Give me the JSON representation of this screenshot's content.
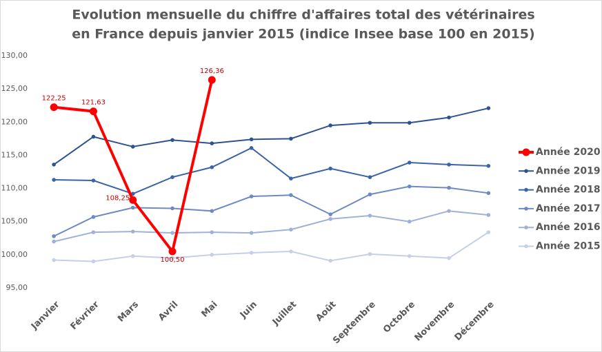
{
  "chart_data": {
    "type": "line",
    "title": [
      "Evolution mensuelle du chiffre d'affaires total des vétérinaires",
      "en France depuis janvier 2015 (indice Insee base 100 en 2015)"
    ],
    "categories": [
      "Janvier",
      "Février",
      "Mars",
      "Avril",
      "Mai",
      "Juin",
      "Juillet",
      "Août",
      "Septembre",
      "Octobre",
      "Novembre",
      "Décembre"
    ],
    "series": [
      {
        "name": "Année 2020",
        "color": "#ff0000",
        "values": [
          122.25,
          121.63,
          108.25,
          100.5,
          126.36,
          null,
          null,
          null,
          null,
          null,
          null,
          null
        ],
        "value_labels": [
          "122,25",
          "121,63",
          "108,25",
          "100,50",
          "126,36",
          null,
          null,
          null,
          null,
          null,
          null,
          null
        ]
      },
      {
        "name": "Année 2019",
        "color": "#2e5290",
        "values": [
          113.6,
          117.8,
          116.3,
          117.3,
          116.8,
          117.4,
          117.5,
          119.5,
          119.9,
          119.9,
          120.7,
          122.1
        ]
      },
      {
        "name": "Année 2018",
        "color": "#3b63a9",
        "values": [
          111.3,
          111.2,
          109.2,
          111.7,
          113.2,
          116.1,
          111.5,
          113.0,
          111.7,
          113.9,
          113.6,
          113.4
        ]
      },
      {
        "name": "Année 2017",
        "color": "#6f89c4",
        "values": [
          102.8,
          105.7,
          107.1,
          107.0,
          106.6,
          108.8,
          109.0,
          106.1,
          109.1,
          110.3,
          110.1,
          109.3
        ]
      },
      {
        "name": "Année 2016",
        "color": "#9fb1d7",
        "values": [
          102.0,
          103.4,
          103.5,
          103.3,
          103.4,
          103.3,
          103.8,
          105.4,
          105.9,
          105.0,
          106.6,
          106.0
        ]
      },
      {
        "name": "Année 2015",
        "color": "#c5cfe5",
        "values": [
          99.2,
          99.0,
          99.8,
          99.5,
          100.0,
          100.3,
          100.5,
          99.1,
          100.1,
          99.8,
          99.5,
          103.4
        ]
      }
    ],
    "ylim": [
      95,
      130
    ],
    "yticks": [
      {
        "value": 95,
        "label": "95,00"
      },
      {
        "value": 100,
        "label": "100,00"
      },
      {
        "value": 105,
        "label": "105,00"
      },
      {
        "value": 110,
        "label": "110,00"
      },
      {
        "value": 115,
        "label": "115,00"
      },
      {
        "value": 120,
        "label": "120,00"
      },
      {
        "value": 125,
        "label": "125,00"
      },
      {
        "value": 130,
        "label": "130,00"
      }
    ],
    "legend": "right"
  }
}
